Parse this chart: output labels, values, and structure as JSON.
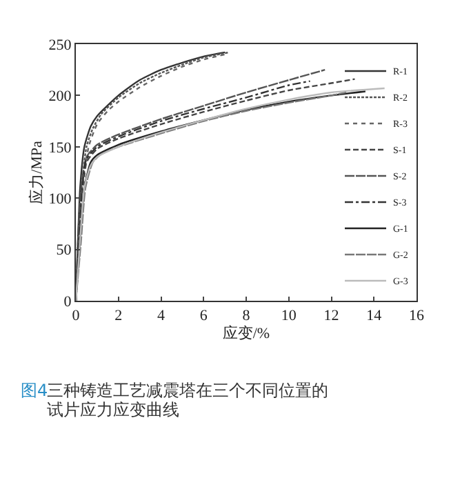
{
  "chart_data": {
    "type": "line",
    "xlabel": "应变/%",
    "ylabel": "应力/MPa",
    "xlim": [
      0,
      16
    ],
    "xticks": [
      0,
      2,
      4,
      6,
      8,
      10,
      12,
      14,
      16
    ],
    "ylim": [
      0,
      250
    ],
    "yticks": [
      0,
      50,
      100,
      150,
      200,
      250
    ],
    "legend": "right",
    "series": [
      {
        "name": "R-1",
        "color": "#333333",
        "line_style": "solid",
        "x": [
          0,
          0.1,
          0.2,
          0.4,
          0.7,
          1,
          2,
          3,
          4,
          5,
          6,
          7
        ],
        "values": [
          0,
          60,
          110,
          150,
          170,
          180,
          200,
          215,
          225,
          232,
          238,
          242
        ]
      },
      {
        "name": "R-2",
        "color": "#555555",
        "line_style": "dot",
        "x": [
          0,
          0.15,
          0.3,
          0.5,
          0.8,
          1.2,
          2,
          3,
          4,
          5,
          6,
          7.2
        ],
        "values": [
          0,
          60,
          115,
          150,
          168,
          182,
          198,
          212,
          222,
          230,
          237,
          242
        ]
      },
      {
        "name": "R-3",
        "color": "#666666",
        "line_style": "dotted",
        "x": [
          0,
          0.2,
          0.35,
          0.6,
          1,
          1.5,
          2,
          3,
          4,
          5,
          6,
          7
        ],
        "values": [
          0,
          60,
          110,
          150,
          172,
          185,
          194,
          208,
          219,
          228,
          235,
          240
        ]
      },
      {
        "name": "S-1",
        "color": "#444444",
        "line_style": "dashed",
        "x": [
          0,
          0.15,
          0.3,
          0.5,
          1,
          2,
          4,
          6,
          8,
          10,
          12,
          13.1
        ],
        "values": [
          0,
          60,
          110,
          135,
          148,
          158,
          172,
          184,
          195,
          205,
          212,
          216
        ]
      },
      {
        "name": "S-2",
        "color": "#555555",
        "line_style": "longdash",
        "x": [
          0,
          0.1,
          0.25,
          0.5,
          1,
          2,
          4,
          6,
          8,
          10,
          11.7
        ],
        "values": [
          0,
          60,
          110,
          140,
          152,
          162,
          177,
          190,
          203,
          215,
          225
        ]
      },
      {
        "name": "S-3",
        "color": "#333333",
        "line_style": "dashdot",
        "x": [
          0,
          0.15,
          0.3,
          0.5,
          1,
          2,
          4,
          6,
          8,
          10,
          11
        ],
        "values": [
          0,
          60,
          110,
          138,
          150,
          160,
          175,
          187,
          198,
          210,
          214
        ]
      },
      {
        "name": "G-1",
        "color": "#222222",
        "line_style": "solid",
        "x": [
          0,
          0.2,
          0.4,
          0.7,
          1,
          2,
          4,
          6,
          8,
          10,
          12,
          13.6
        ],
        "values": [
          0,
          60,
          110,
          135,
          142,
          152,
          165,
          176,
          186,
          194,
          200,
          204
        ]
      },
      {
        "name": "G-2",
        "color": "#777777",
        "line_style": "longdash",
        "x": [
          0,
          0.25,
          0.45,
          0.8,
          1.2,
          2,
          4,
          6,
          8,
          10,
          12,
          12.7
        ],
        "values": [
          0,
          60,
          110,
          135,
          143,
          150,
          163,
          175,
          185,
          193,
          200,
          203
        ]
      },
      {
        "name": "G-3",
        "color": "#bbbbbb",
        "line_style": "solid",
        "x": [
          0,
          0.2,
          0.4,
          0.7,
          1,
          2,
          4,
          6,
          8,
          10,
          12,
          14.5
        ],
        "values": [
          0,
          60,
          110,
          132,
          140,
          150,
          164,
          176,
          187,
          196,
          203,
          207
        ]
      }
    ],
    "annotations": [
      "图4",
      "三种铸造工艺减震塔在三个不同位置的",
      "试片应力应变曲线"
    ]
  }
}
